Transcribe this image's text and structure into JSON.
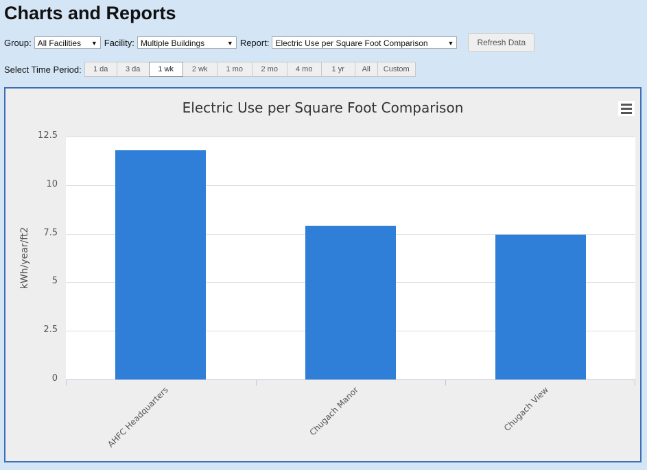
{
  "page": {
    "title": "Charts and Reports"
  },
  "controls": {
    "group_label": "Group:",
    "group_value": "All Facilities",
    "facility_label": "Facility:",
    "facility_value": "Multiple Buildings",
    "report_label": "Report:",
    "report_value": "Electric Use per Square Foot Comparison",
    "refresh_label": "Refresh Data"
  },
  "time_period": {
    "label": "Select Time Period:",
    "options": [
      "1 da",
      "3 da",
      "1 wk",
      "2 wk",
      "1 mo",
      "2 mo",
      "4 mo",
      "1 yr",
      "All",
      "Custom"
    ],
    "selected": "1 wk"
  },
  "chart_data": {
    "type": "bar",
    "title": "Electric Use per Square Foot Comparison",
    "ylabel": "kWh/year/ft2",
    "xlabel": "",
    "categories": [
      "AHFC Headquarters",
      "Chugach Manor",
      "Chugach View"
    ],
    "values": [
      11.8,
      7.9,
      7.45
    ],
    "ylim": [
      0,
      12.5
    ],
    "yticks": [
      "0",
      "2.5",
      "5",
      "7.5",
      "10",
      "12.5"
    ],
    "bar_color": "#2f7ed8",
    "grid": true
  }
}
